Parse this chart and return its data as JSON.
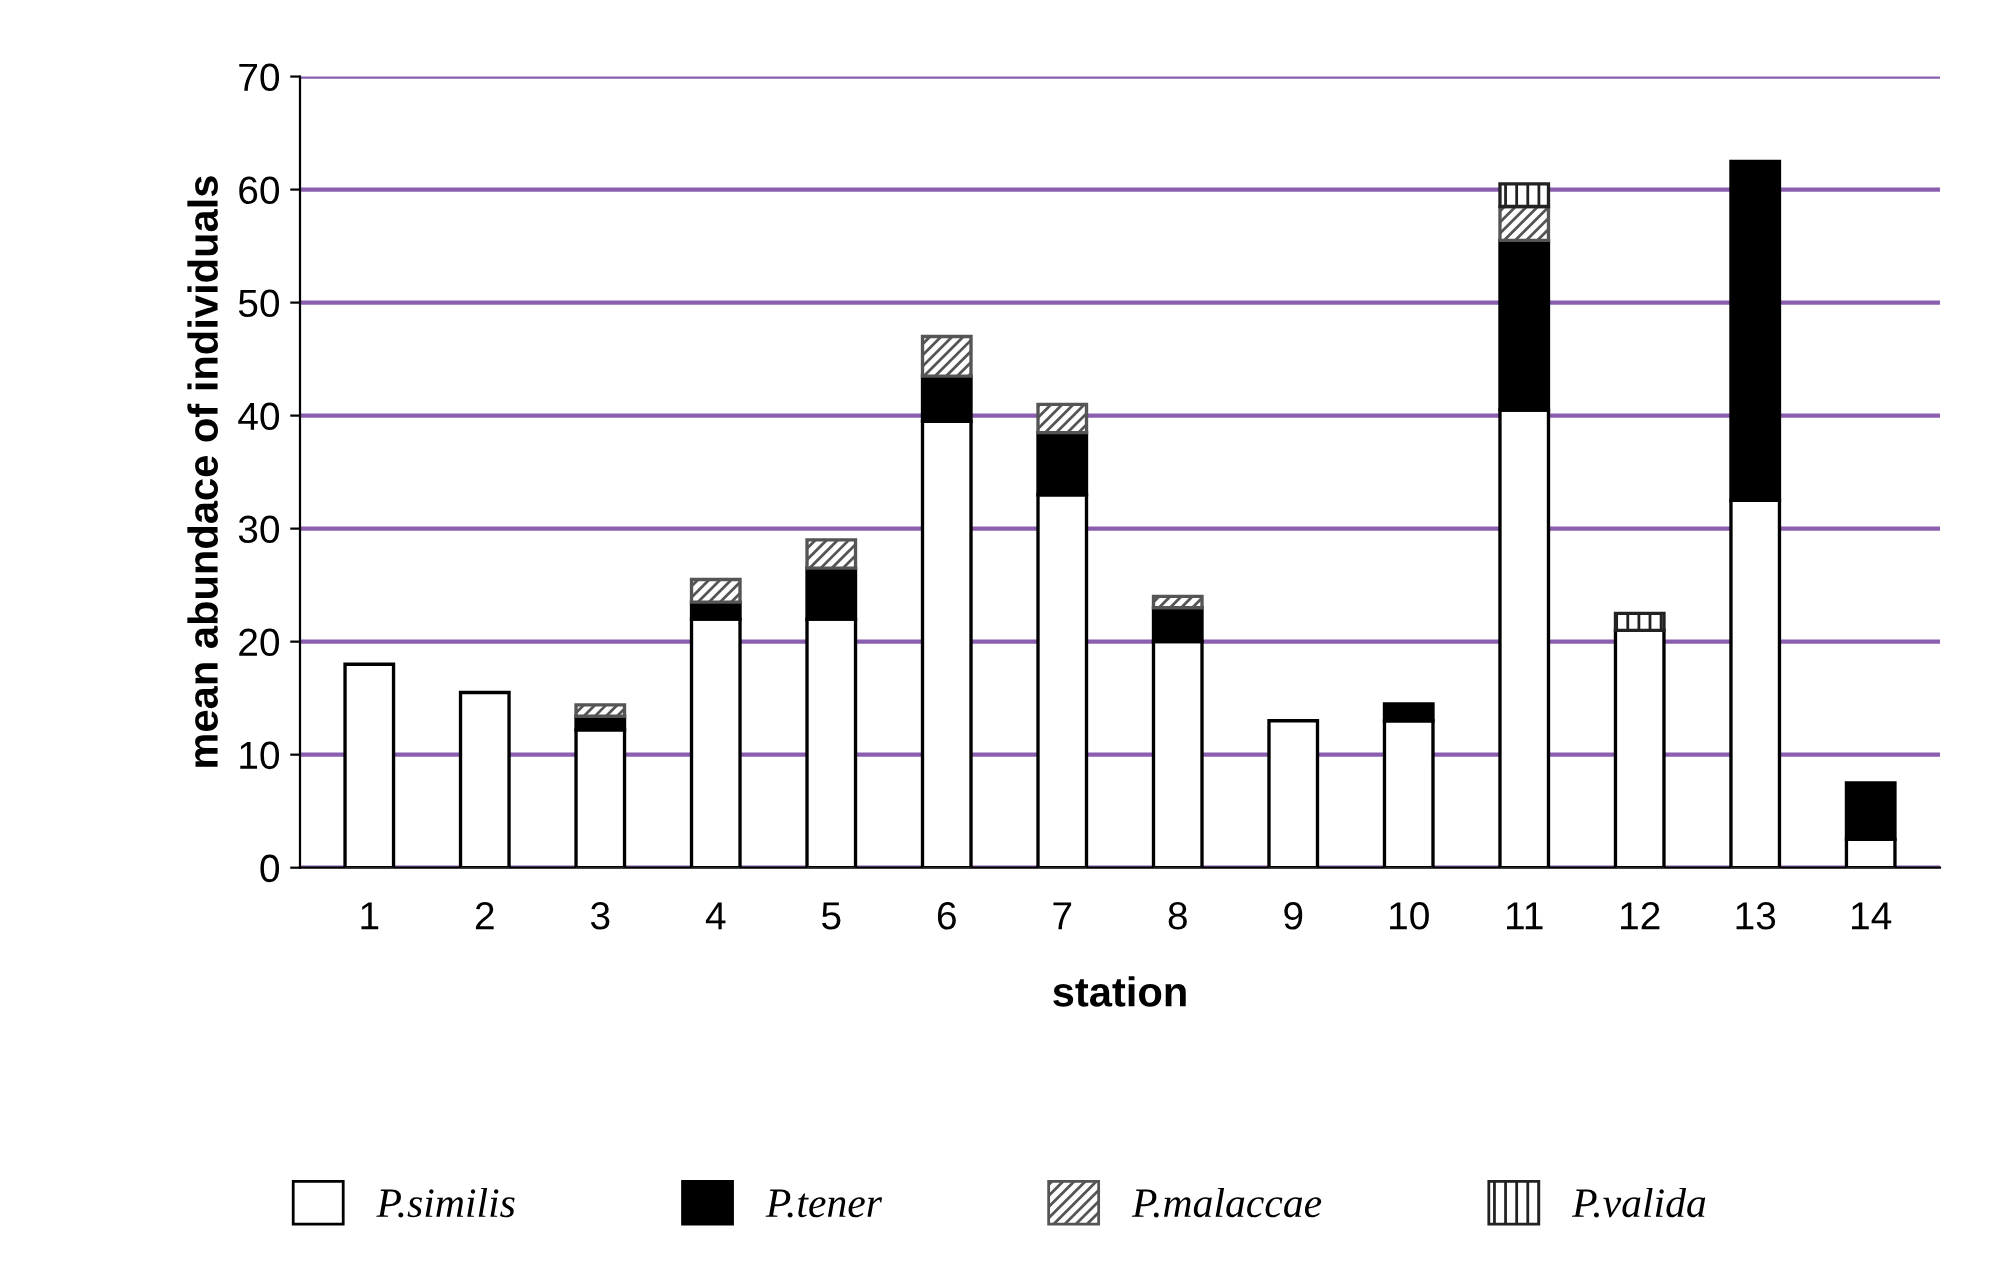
{
  "chart_data": {
    "type": "bar",
    "stacked": true,
    "xlabel": "station",
    "ylabel": "mean abundace of individuals",
    "categories": [
      "1",
      "2",
      "3",
      "4",
      "5",
      "6",
      "7",
      "8",
      "9",
      "10",
      "11",
      "12",
      "13",
      "14"
    ],
    "series": [
      {
        "name": "P.similis",
        "color": "#ffffff",
        "values": [
          18,
          15.5,
          12.2,
          22,
          22,
          39.5,
          33,
          20,
          13,
          13,
          40.5,
          21,
          32.5,
          2.5
        ]
      },
      {
        "name": "P.tener",
        "color": "#000000",
        "values": [
          null,
          null,
          1.2,
          1.5,
          4.5,
          4,
          5.5,
          3,
          null,
          1.5,
          15,
          null,
          30,
          5
        ]
      },
      {
        "name": "P.malaccae",
        "color": "#555555",
        "values": [
          null,
          null,
          1,
          2,
          2.5,
          3.5,
          2.5,
          1,
          null,
          null,
          3,
          null,
          null,
          null
        ]
      },
      {
        "name": "P.valida",
        "color": "#222222",
        "values": [
          null,
          null,
          null,
          null,
          null,
          null,
          null,
          null,
          null,
          null,
          2,
          1.5,
          null,
          null
        ]
      }
    ],
    "ylim": [
      0,
      70
    ],
    "yticks": [
      0,
      10,
      20,
      30,
      40,
      50,
      60,
      70
    ],
    "grid": "y",
    "legend": "bottom"
  }
}
